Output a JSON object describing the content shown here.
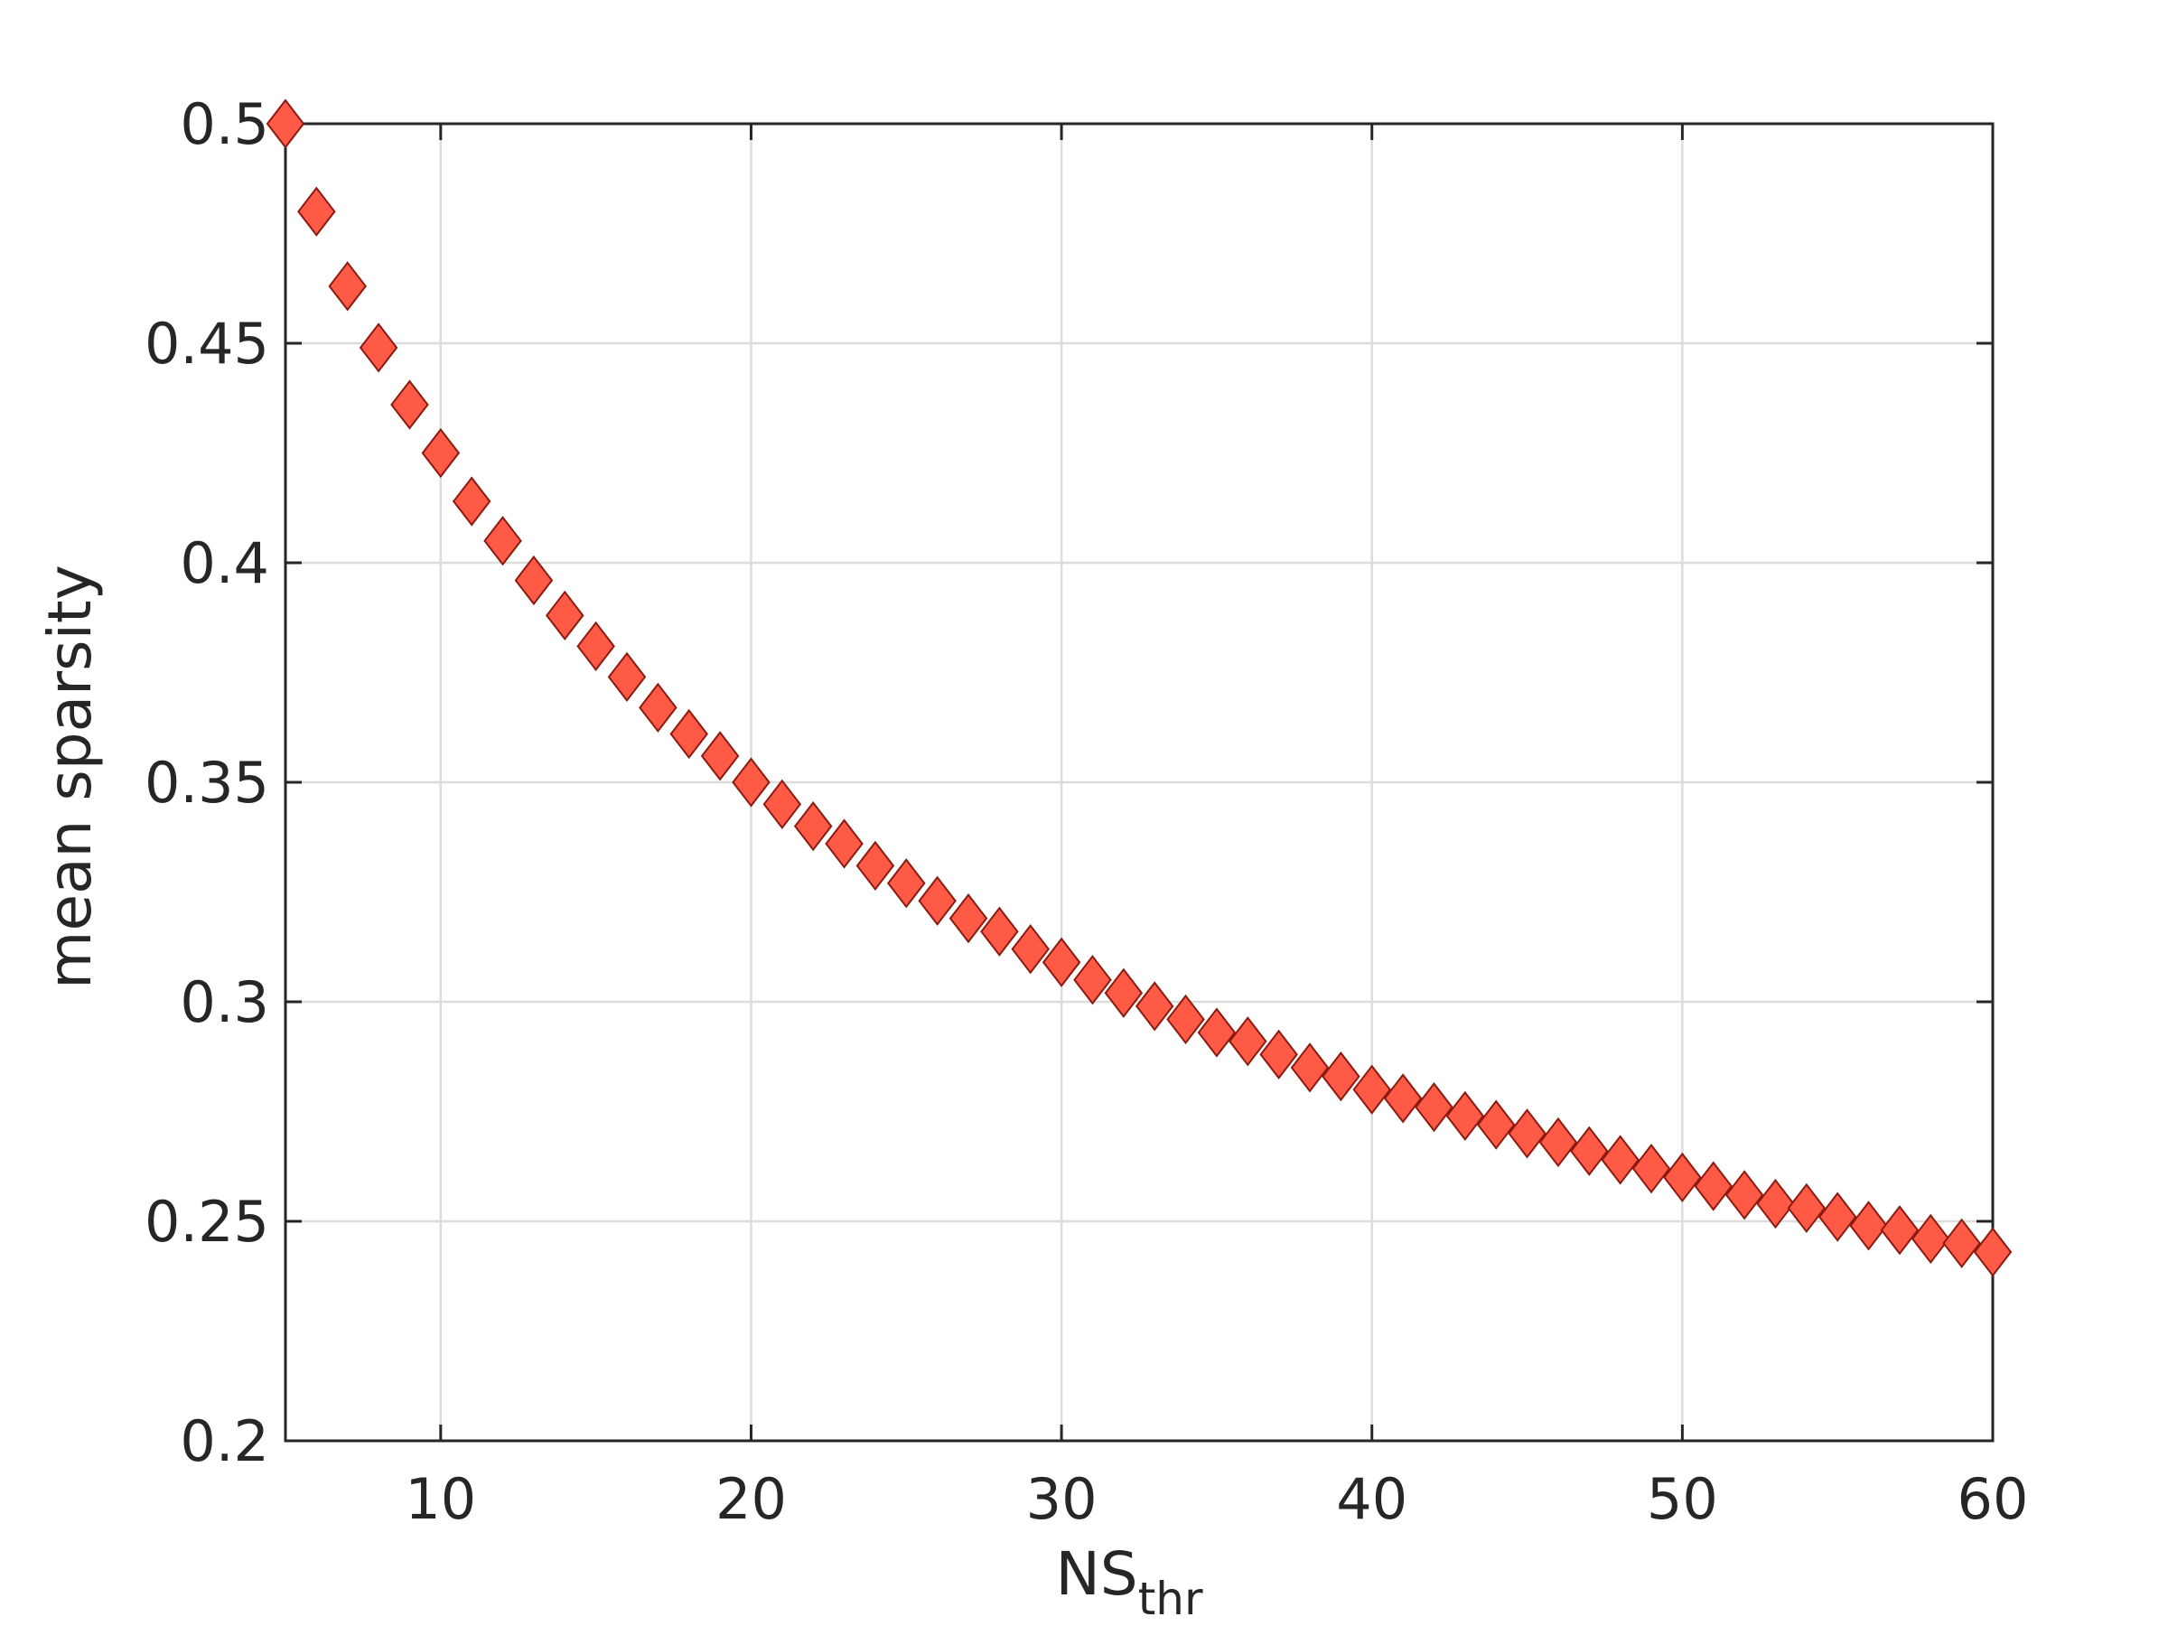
{
  "chart_data": {
    "type": "scatter",
    "title": "",
    "xlabel": "NS",
    "xlabel_subscript": "thr",
    "ylabel": "mean sparsity",
    "xlim": [
      5,
      60
    ],
    "ylim": [
      0.2,
      0.5
    ],
    "xticks": [
      10,
      20,
      30,
      40,
      50,
      60
    ],
    "xtick_labels": [
      "10",
      "20",
      "30",
      "40",
      "50",
      "60"
    ],
    "yticks": [
      0.2,
      0.25,
      0.3,
      0.35,
      0.4,
      0.45,
      0.5
    ],
    "ytick_labels": [
      "0.2",
      "0.25",
      "0.3",
      "0.35",
      "0.4",
      "0.45",
      "0.5"
    ],
    "grid": true,
    "marker": "diamond",
    "marker_color": "#ff5a45",
    "marker_edge_color": "#8b1a10",
    "series": [
      {
        "x": [
          5,
          6,
          7,
          8,
          9,
          10,
          11,
          12,
          13,
          14,
          15,
          16,
          17,
          18,
          19,
          20,
          21,
          22,
          23,
          24,
          25,
          26,
          27,
          28,
          29,
          30,
          31,
          32,
          33,
          34,
          35,
          36,
          37,
          38,
          39,
          40,
          41,
          42,
          43,
          44,
          45,
          46,
          47,
          48,
          49,
          50,
          51,
          52,
          53,
          54,
          55,
          56,
          57,
          58,
          59,
          60
        ],
        "y": [
          0.5,
          0.48,
          0.463,
          0.449,
          0.436,
          0.425,
          0.414,
          0.405,
          0.396,
          0.388,
          0.381,
          0.374,
          0.367,
          0.361,
          0.356,
          0.35,
          0.345,
          0.34,
          0.336,
          0.331,
          0.327,
          0.323,
          0.319,
          0.316,
          0.312,
          0.309,
          0.305,
          0.302,
          0.299,
          0.296,
          0.293,
          0.291,
          0.288,
          0.285,
          0.283,
          0.28,
          0.278,
          0.276,
          0.274,
          0.272,
          0.27,
          0.268,
          0.266,
          0.264,
          0.262,
          0.26,
          0.258,
          0.256,
          0.254,
          0.253,
          0.251,
          0.249,
          0.248,
          0.246,
          0.245,
          0.243
        ]
      }
    ]
  }
}
